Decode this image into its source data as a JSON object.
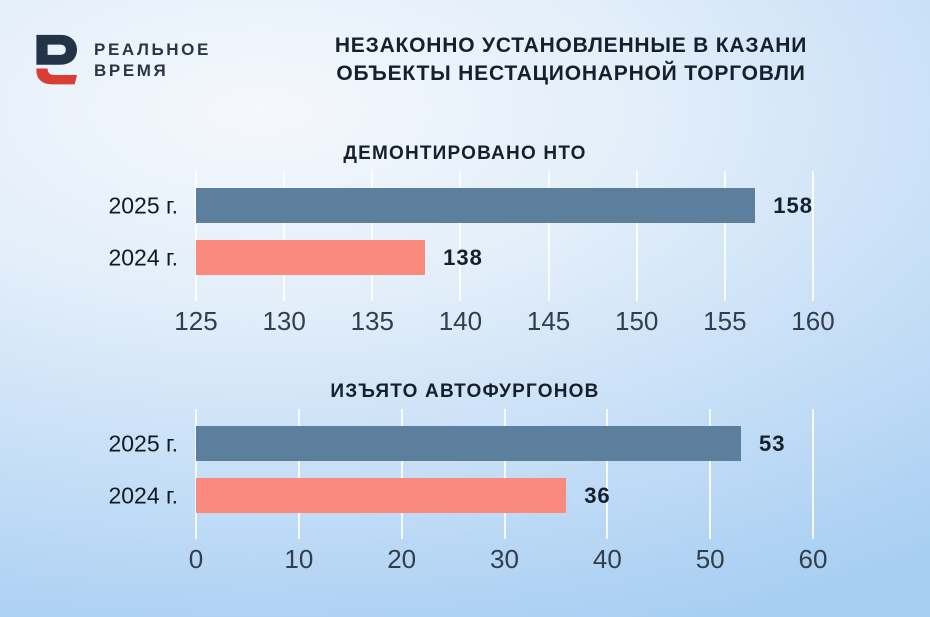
{
  "brand": {
    "name_line1": "РЕАЛЬНОЕ",
    "name_line2": "ВРЕМЯ"
  },
  "title": {
    "line1": "НЕЗАКОННО УСТАНОВЛЕННЫЕ В КАЗАНИ",
    "line2": "ОБЪЕКТЫ НЕСТАЦИОНАРНОЙ ТОРГОВЛИ"
  },
  "colors": {
    "bar_2025": "#5d7f9e",
    "bar_2024": "#fb8a7e",
    "logo_navy": "#243448",
    "logo_red": "#d93d33",
    "text_dark": "#15202c",
    "axis_text": "#323f4b",
    "gridline": "rgba(255,255,255,0.85)",
    "background_light": "#f5f8fc",
    "background_blue": "#a7cef2"
  },
  "chart_data": [
    {
      "type": "bar",
      "orientation": "horizontal",
      "title": "ДЕМОНТИРОВАНО НТО",
      "categories": [
        "2025 г.",
        "2024 г."
      ],
      "values": [
        158,
        138
      ],
      "value_labels": [
        "158",
        "138"
      ],
      "xlim": [
        125,
        160
      ],
      "ticks": [
        125,
        130,
        135,
        140,
        145,
        150,
        155,
        160
      ],
      "bar_colors": [
        "#5d7f9e",
        "#fb8a7e"
      ],
      "grid": true,
      "legend": false
    },
    {
      "type": "bar",
      "orientation": "horizontal",
      "title": "ИЗЪЯТО АВТОФУРГОНОВ",
      "categories": [
        "2025 г.",
        "2024 г."
      ],
      "values": [
        53,
        36
      ],
      "value_labels": [
        "53",
        "36"
      ],
      "xlim": [
        0,
        60
      ],
      "ticks": [
        0,
        10,
        20,
        30,
        40,
        50,
        60
      ],
      "bar_colors": [
        "#5d7f9e",
        "#fb8a7e"
      ],
      "grid": true,
      "legend": false
    }
  ]
}
